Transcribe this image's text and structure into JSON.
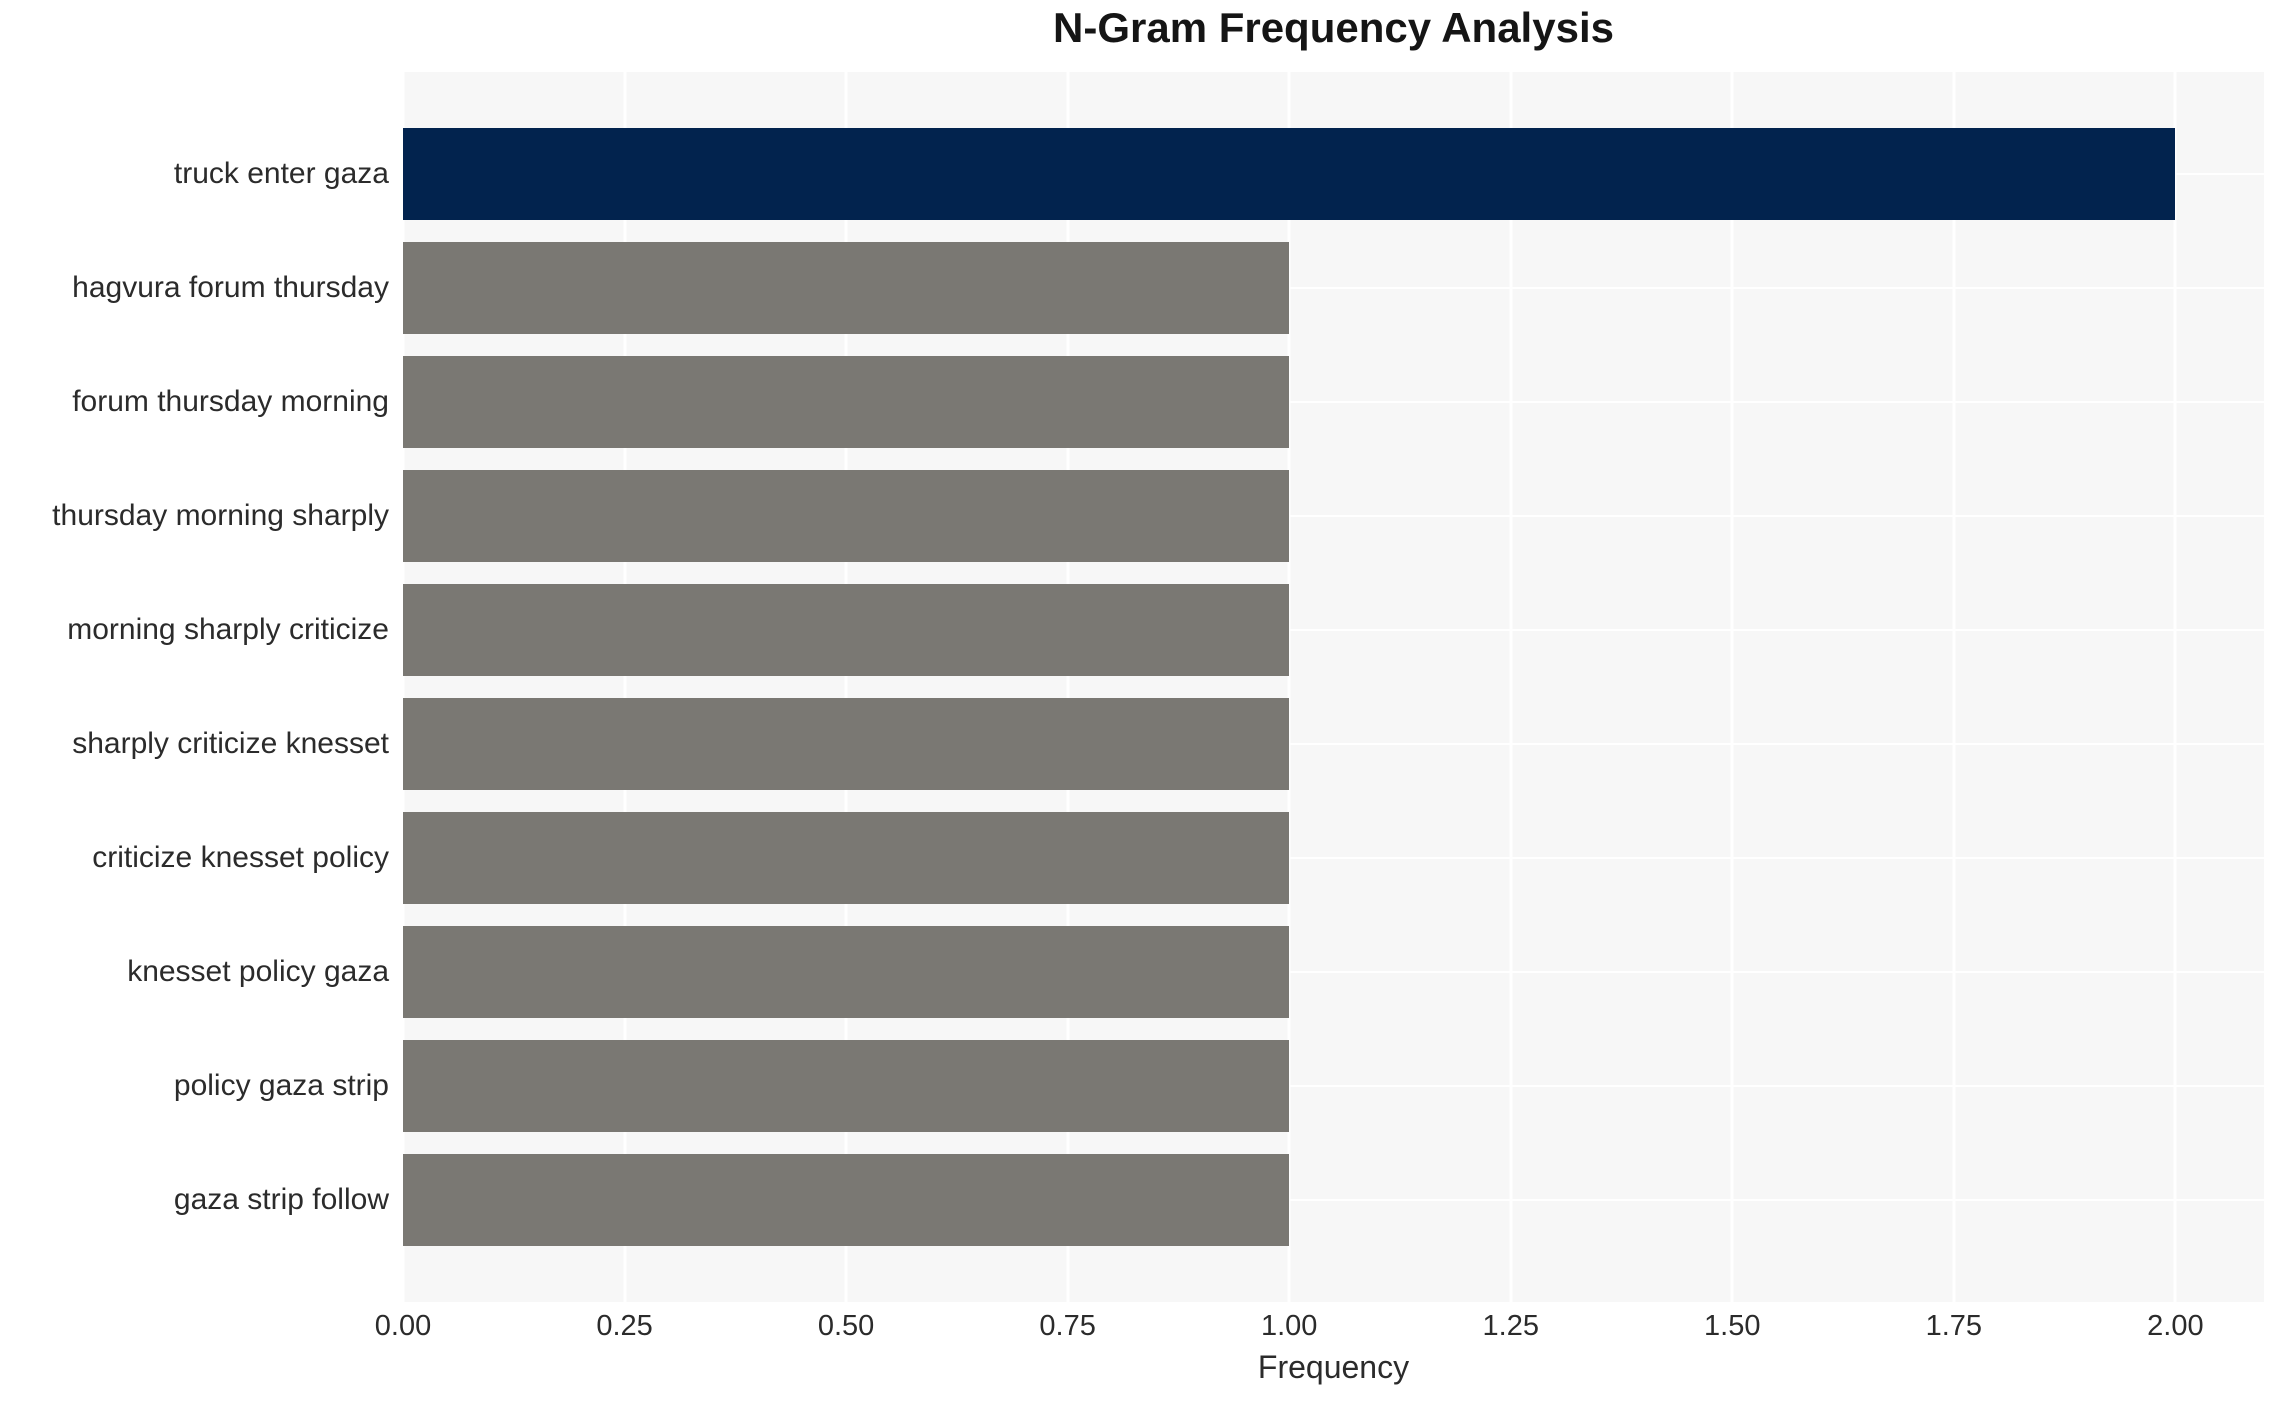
{
  "chart_data": {
    "type": "bar",
    "orientation": "horizontal",
    "title": "N-Gram Frequency Analysis",
    "xlabel": "Frequency",
    "ylabel": "",
    "categories": [
      "truck enter gaza",
      "hagvura forum thursday",
      "forum thursday morning",
      "thursday morning sharply",
      "morning sharply criticize",
      "sharply criticize knesset",
      "criticize knesset policy",
      "knesset policy gaza",
      "policy gaza strip",
      "gaza strip follow"
    ],
    "values": [
      2.0,
      1.0,
      1.0,
      1.0,
      1.0,
      1.0,
      1.0,
      1.0,
      1.0,
      1.0
    ],
    "xlim": [
      0,
      2.1
    ],
    "x_ticks": [
      0,
      0.25,
      0.5,
      0.75,
      1.0,
      1.25,
      1.5,
      1.75,
      2.0
    ],
    "x_tick_labels": [
      "0.00",
      "0.25",
      "0.50",
      "0.75",
      "1.00",
      "1.25",
      "1.50",
      "1.75",
      "2.00"
    ],
    "grid": true,
    "legend_position": "none",
    "bar_colors": [
      "#02234e",
      "#7a7873",
      "#7a7873",
      "#7a7873",
      "#7a7873",
      "#7a7873",
      "#7a7873",
      "#7a7873",
      "#7a7873",
      "#7a7873"
    ]
  },
  "style": {
    "highlight_bar_color": "#02234e",
    "default_bar_color": "#7a7873",
    "plot_background": "#f7f7f7",
    "grid_color": "#ffffff",
    "figure_background": "#ffffff",
    "text_color": "#2b2b2b"
  }
}
